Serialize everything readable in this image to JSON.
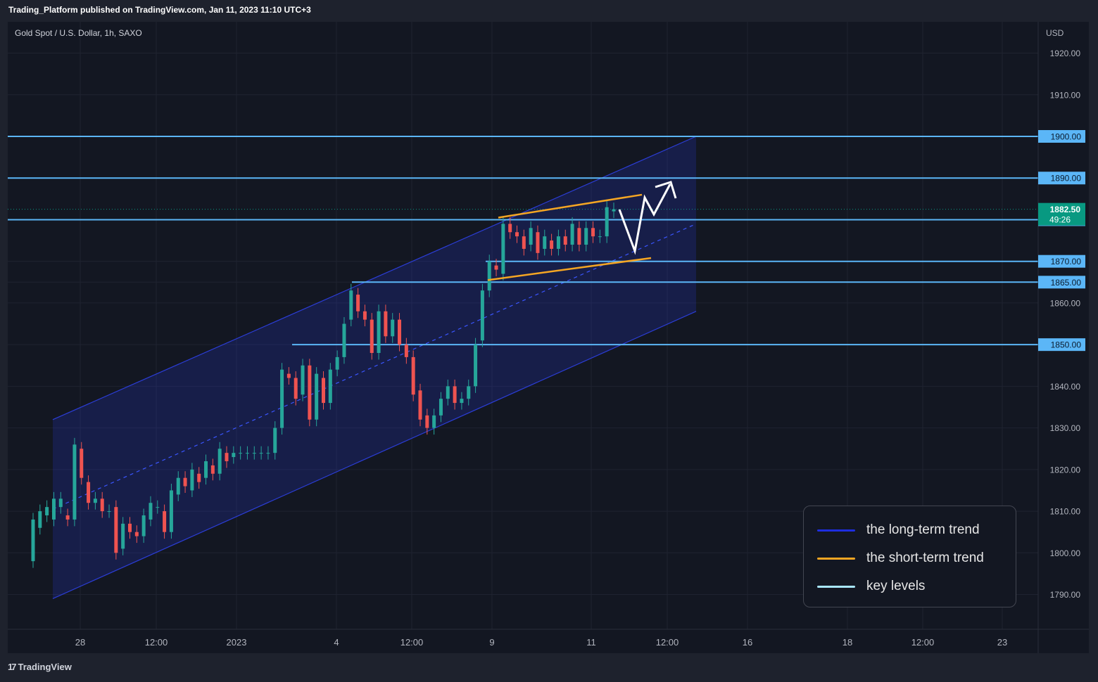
{
  "header": {
    "published_line": "Trading_Platform published on TradingView.com, Jan 11, 2023 11:10 UTC+3"
  },
  "symbol": {
    "title": "Gold Spot / U.S. Dollar, 1h, SAXO"
  },
  "footer": {
    "logo_text": "TradingView",
    "logo_icon": "tradingview-logo-icon"
  },
  "colors": {
    "background": "#131722",
    "page_background": "#1e222d",
    "up_candle": "#26a69a",
    "down_candle": "#ef5350",
    "key_level": "#5bb6f7",
    "long_term_trend": "#2b3dd6",
    "short_term_trend": "#f5a623",
    "projection_arrow": "#ffffff",
    "last_price_badge": "#089981"
  },
  "legend": {
    "items": [
      {
        "label": "the long-term trend",
        "color": "#1e2ee0"
      },
      {
        "label": "the short-term trend",
        "color": "#f5a623"
      },
      {
        "label": "key levels",
        "color": "#a9e7ff"
      }
    ]
  },
  "chart_data": {
    "type": "candlestick",
    "currency": "USD",
    "y_ticks": [
      "1920.00",
      "1910.00",
      "1900.00",
      "1890.00",
      "1880.00",
      "1870.00",
      "1865.00",
      "1860.00",
      "1850.00",
      "1840.00",
      "1830.00",
      "1820.00",
      "1810.00",
      "1800.00",
      "1790.00"
    ],
    "x_ticks": [
      "28",
      "12:00",
      "2023",
      "4",
      "12:00",
      "9",
      "11",
      "12:00",
      "16",
      "18",
      "12:00",
      "23"
    ],
    "ylim": [
      1785,
      1922
    ],
    "key_levels": [
      1900,
      1890,
      1880,
      1870,
      1865,
      1850
    ],
    "highlighted_levels": [
      "1900.00",
      "1890.00",
      "1880.00",
      "1870.00",
      "1865.00",
      "1850.00"
    ],
    "last_price": {
      "value": "1882.50",
      "countdown": "49:26",
      "numeric": 1882.5
    },
    "long_term_channel": {
      "description": "ascending channel",
      "upper": [
        [
          "Dec 27",
          1832
        ],
        [
          "Jan 13",
          1900
        ]
      ],
      "lower": [
        [
          "Dec 27",
          1789
        ],
        [
          "Jan 13",
          1858
        ]
      ]
    },
    "short_term_channel": {
      "upper": [
        [
          "Jan 9",
          1880.5
        ],
        [
          "Jan 11 16:00",
          1886
        ]
      ],
      "lower": [
        [
          "Jan 9",
          1865.5
        ],
        [
          "Jan 11 16:00",
          1870.8
        ]
      ]
    },
    "series": [
      {
        "points": [
          [
            1798,
            1808
          ],
          [
            1806,
            1810
          ],
          [
            1809,
            1811
          ],
          [
            1808,
            1813
          ],
          [
            1811,
            1813
          ],
          [
            1809,
            1808
          ],
          [
            1808,
            1826
          ],
          [
            1825,
            1818
          ],
          [
            1817,
            1812
          ],
          [
            1812,
            1813
          ],
          [
            1813,
            1810
          ],
          [
            1810,
            1810
          ],
          [
            1811,
            1800
          ],
          [
            1801,
            1807
          ],
          [
            1807,
            1805
          ],
          [
            1805,
            1804
          ],
          [
            1804,
            1809
          ],
          [
            1808,
            1812
          ],
          [
            1811,
            1811
          ],
          [
            1810,
            1805
          ],
          [
            1805,
            1815
          ],
          [
            1814,
            1818
          ],
          [
            1818,
            1816
          ],
          [
            1815,
            1820
          ],
          [
            1819,
            1817
          ],
          [
            1818,
            1822
          ],
          [
            1821,
            1819
          ],
          [
            1819,
            1825
          ],
          [
            1824,
            1822
          ],
          [
            1823,
            1824
          ],
          [
            1824,
            1824
          ],
          [
            1824,
            1824
          ],
          [
            1824,
            1824
          ],
          [
            1824,
            1824
          ],
          [
            1824,
            1824
          ],
          [
            1824,
            1830
          ],
          [
            1830,
            1844
          ],
          [
            1843,
            1842
          ],
          [
            1842,
            1837
          ],
          [
            1838,
            1845
          ],
          [
            1845,
            1832
          ],
          [
            1832,
            1843
          ],
          [
            1842,
            1836
          ],
          [
            1836,
            1844
          ],
          [
            1844,
            1847
          ],
          [
            1847,
            1855
          ],
          [
            1856,
            1863
          ],
          [
            1862,
            1858
          ],
          [
            1858,
            1856
          ],
          [
            1856,
            1848
          ],
          [
            1848,
            1858
          ],
          [
            1858,
            1852
          ],
          [
            1852,
            1856
          ],
          [
            1856,
            1850
          ],
          [
            1850,
            1847
          ],
          [
            1847,
            1838
          ],
          [
            1839,
            1832
          ],
          [
            1833,
            1830
          ],
          [
            1830,
            1833
          ],
          [
            1833,
            1837
          ],
          [
            1837,
            1840
          ],
          [
            1840,
            1836
          ],
          [
            1836,
            1837
          ],
          [
            1837,
            1840
          ],
          [
            1840,
            1850
          ],
          [
            1851,
            1863
          ],
          [
            1863,
            1870
          ],
          [
            1869,
            1868
          ],
          [
            1867,
            1879
          ],
          [
            1879,
            1877
          ],
          [
            1877,
            1876
          ],
          [
            1876,
            1873
          ],
          [
            1874,
            1878
          ],
          [
            1877,
            1872
          ],
          [
            1873,
            1876
          ],
          [
            1875,
            1873
          ],
          [
            1873,
            1876
          ],
          [
            1876,
            1874
          ],
          [
            1874,
            1879
          ],
          [
            1878,
            1874
          ],
          [
            1874,
            1878
          ],
          [
            1878,
            1876
          ],
          [
            1876,
            1876
          ],
          [
            1876,
            1883
          ],
          [
            1882,
            1882.5
          ]
        ]
      }
    ]
  }
}
